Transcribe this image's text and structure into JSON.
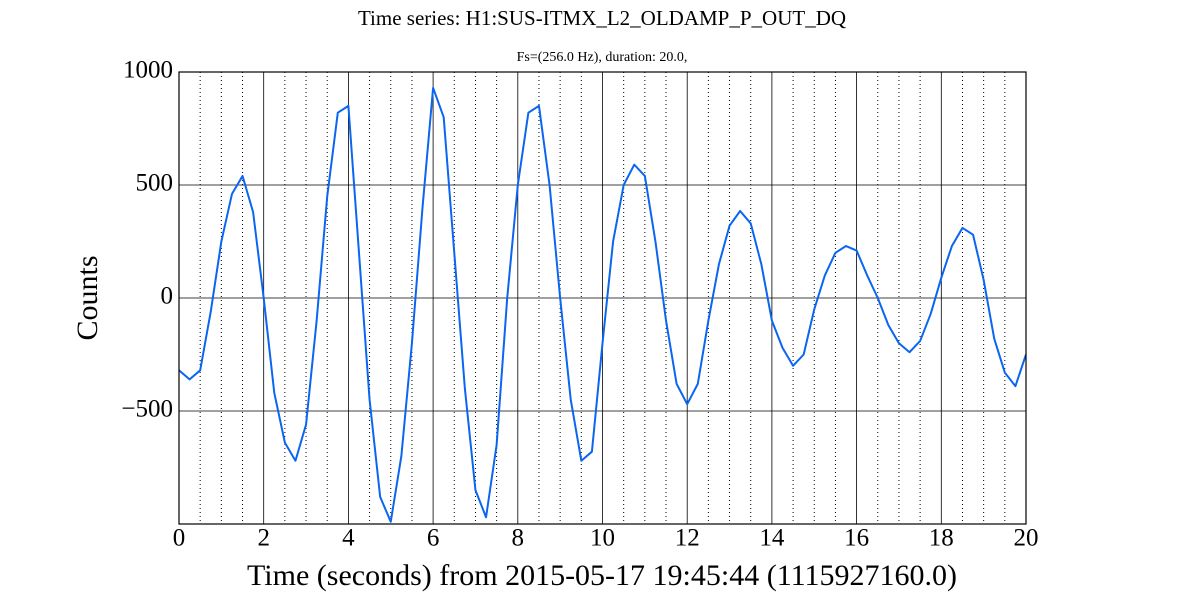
{
  "chart_data": {
    "type": "line",
    "title": "Time series: H1:SUS-ITMX_L2_OLDAMP_P_OUT_DQ",
    "subtitle": "Fs=(256.0 Hz), duration: 20.0,",
    "xlabel": "Time (seconds) from 2015-05-17 19:45:44 (1115927160.0)",
    "ylabel": "Counts",
    "x": [
      0,
      0.25,
      0.5,
      0.75,
      1,
      1.25,
      1.5,
      1.75,
      2,
      2.25,
      2.5,
      2.75,
      3,
      3.25,
      3.5,
      3.75,
      4,
      4.25,
      4.5,
      4.75,
      5,
      5.25,
      5.5,
      5.75,
      6,
      6.25,
      6.5,
      6.75,
      7,
      7.25,
      7.5,
      7.75,
      8,
      8.25,
      8.5,
      8.75,
      9,
      9.25,
      9.5,
      9.75,
      10,
      10.25,
      10.5,
      10.75,
      11,
      11.25,
      11.5,
      11.75,
      12,
      12.25,
      12.5,
      12.75,
      13,
      13.25,
      13.5,
      13.75,
      14,
      14.25,
      14.5,
      14.75,
      15,
      15.25,
      15.5,
      15.75,
      16,
      16.25,
      16.5,
      16.75,
      17,
      17.25,
      17.5,
      17.75,
      18,
      18.25,
      18.5,
      18.75,
      19,
      19.25,
      19.5,
      19.75,
      20
    ],
    "series": [
      {
        "color": "#0a66f0",
        "values": [
          -320,
          -360,
          -320,
          -60,
          250,
          460,
          540,
          380,
          0,
          -420,
          -640,
          -720,
          -560,
          -100,
          450,
          820,
          850,
          200,
          -450,
          -880,
          -990,
          -700,
          -200,
          400,
          930,
          800,
          200,
          -400,
          -850,
          -970,
          -650,
          0,
          500,
          820,
          850,
          500,
          0,
          -450,
          -720,
          -680,
          -200,
          250,
          500,
          590,
          540,
          250,
          -100,
          -380,
          -470,
          -380,
          -100,
          150,
          320,
          385,
          330,
          150,
          -100,
          -220,
          -300,
          -250,
          -50,
          100,
          200,
          230,
          210,
          100,
          0,
          -120,
          -200,
          -240,
          -190,
          -70,
          90,
          230,
          310,
          280,
          80,
          -180,
          -330,
          -390,
          -250
        ]
      }
    ],
    "xlim": [
      0,
      20
    ],
    "xticks": [
      0,
      2,
      4,
      6,
      8,
      10,
      12,
      14,
      16,
      18,
      20
    ],
    "xminorticks": [
      0.5,
      1,
      1.5,
      2.5,
      3,
      3.5,
      4.5,
      5,
      5.5,
      6.5,
      7,
      7.5,
      8.5,
      9,
      9.5,
      10.5,
      11,
      11.5,
      12.5,
      13,
      13.5,
      14.5,
      15,
      15.5,
      16.5,
      17,
      17.5,
      18.5,
      19,
      19.5
    ],
    "ylim": [
      -1000,
      1000
    ],
    "yticks": [
      {
        "value": -500,
        "label": "−500"
      },
      0,
      500,
      1000
    ],
    "grid": true
  }
}
